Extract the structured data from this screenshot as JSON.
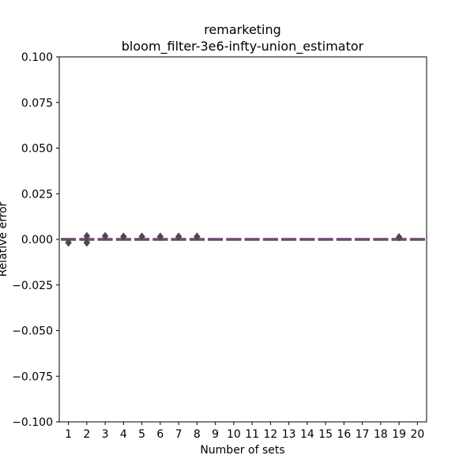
{
  "chart_data": {
    "type": "boxplot",
    "title": "remarketing",
    "subtitle": "bloom_filter-3e6-infty-union_estimator",
    "xlabel": "Number of sets",
    "ylabel": "Relative error",
    "ylim": [
      -0.1,
      0.1
    ],
    "yticks": [
      -0.1,
      -0.075,
      -0.05,
      -0.025,
      0.0,
      0.025,
      0.05,
      0.075,
      0.1
    ],
    "ytick_labels": [
      "−0.100",
      "−0.075",
      "−0.050",
      "−0.025",
      "0.000",
      "0.025",
      "0.050",
      "0.075",
      "0.100"
    ],
    "categories": [
      "1",
      "2",
      "3",
      "4",
      "5",
      "6",
      "7",
      "8",
      "9",
      "10",
      "11",
      "12",
      "13",
      "14",
      "15",
      "16",
      "17",
      "18",
      "19",
      "20"
    ],
    "values": [
      0,
      0,
      0,
      0,
      0,
      0,
      0,
      0,
      0,
      0,
      0,
      0,
      0,
      0,
      0,
      0,
      0,
      0,
      0,
      0
    ],
    "outlier_min": [
      -0.0018,
      -0.0018,
      0,
      0,
      0,
      0,
      0,
      0,
      0,
      0,
      0,
      0,
      0,
      0,
      0,
      0,
      0,
      0,
      0,
      0
    ],
    "outlier_max": [
      0,
      0.0018,
      0.0018,
      0.0015,
      0.0015,
      0.0015,
      0.0015,
      0.0015,
      0,
      0,
      0,
      0,
      0,
      0,
      0,
      0,
      0,
      0,
      0.0012,
      0
    ],
    "grid": false,
    "colors": {
      "box": "#4a4a4a",
      "median": "#d020d0",
      "axis": "#000000"
    }
  }
}
